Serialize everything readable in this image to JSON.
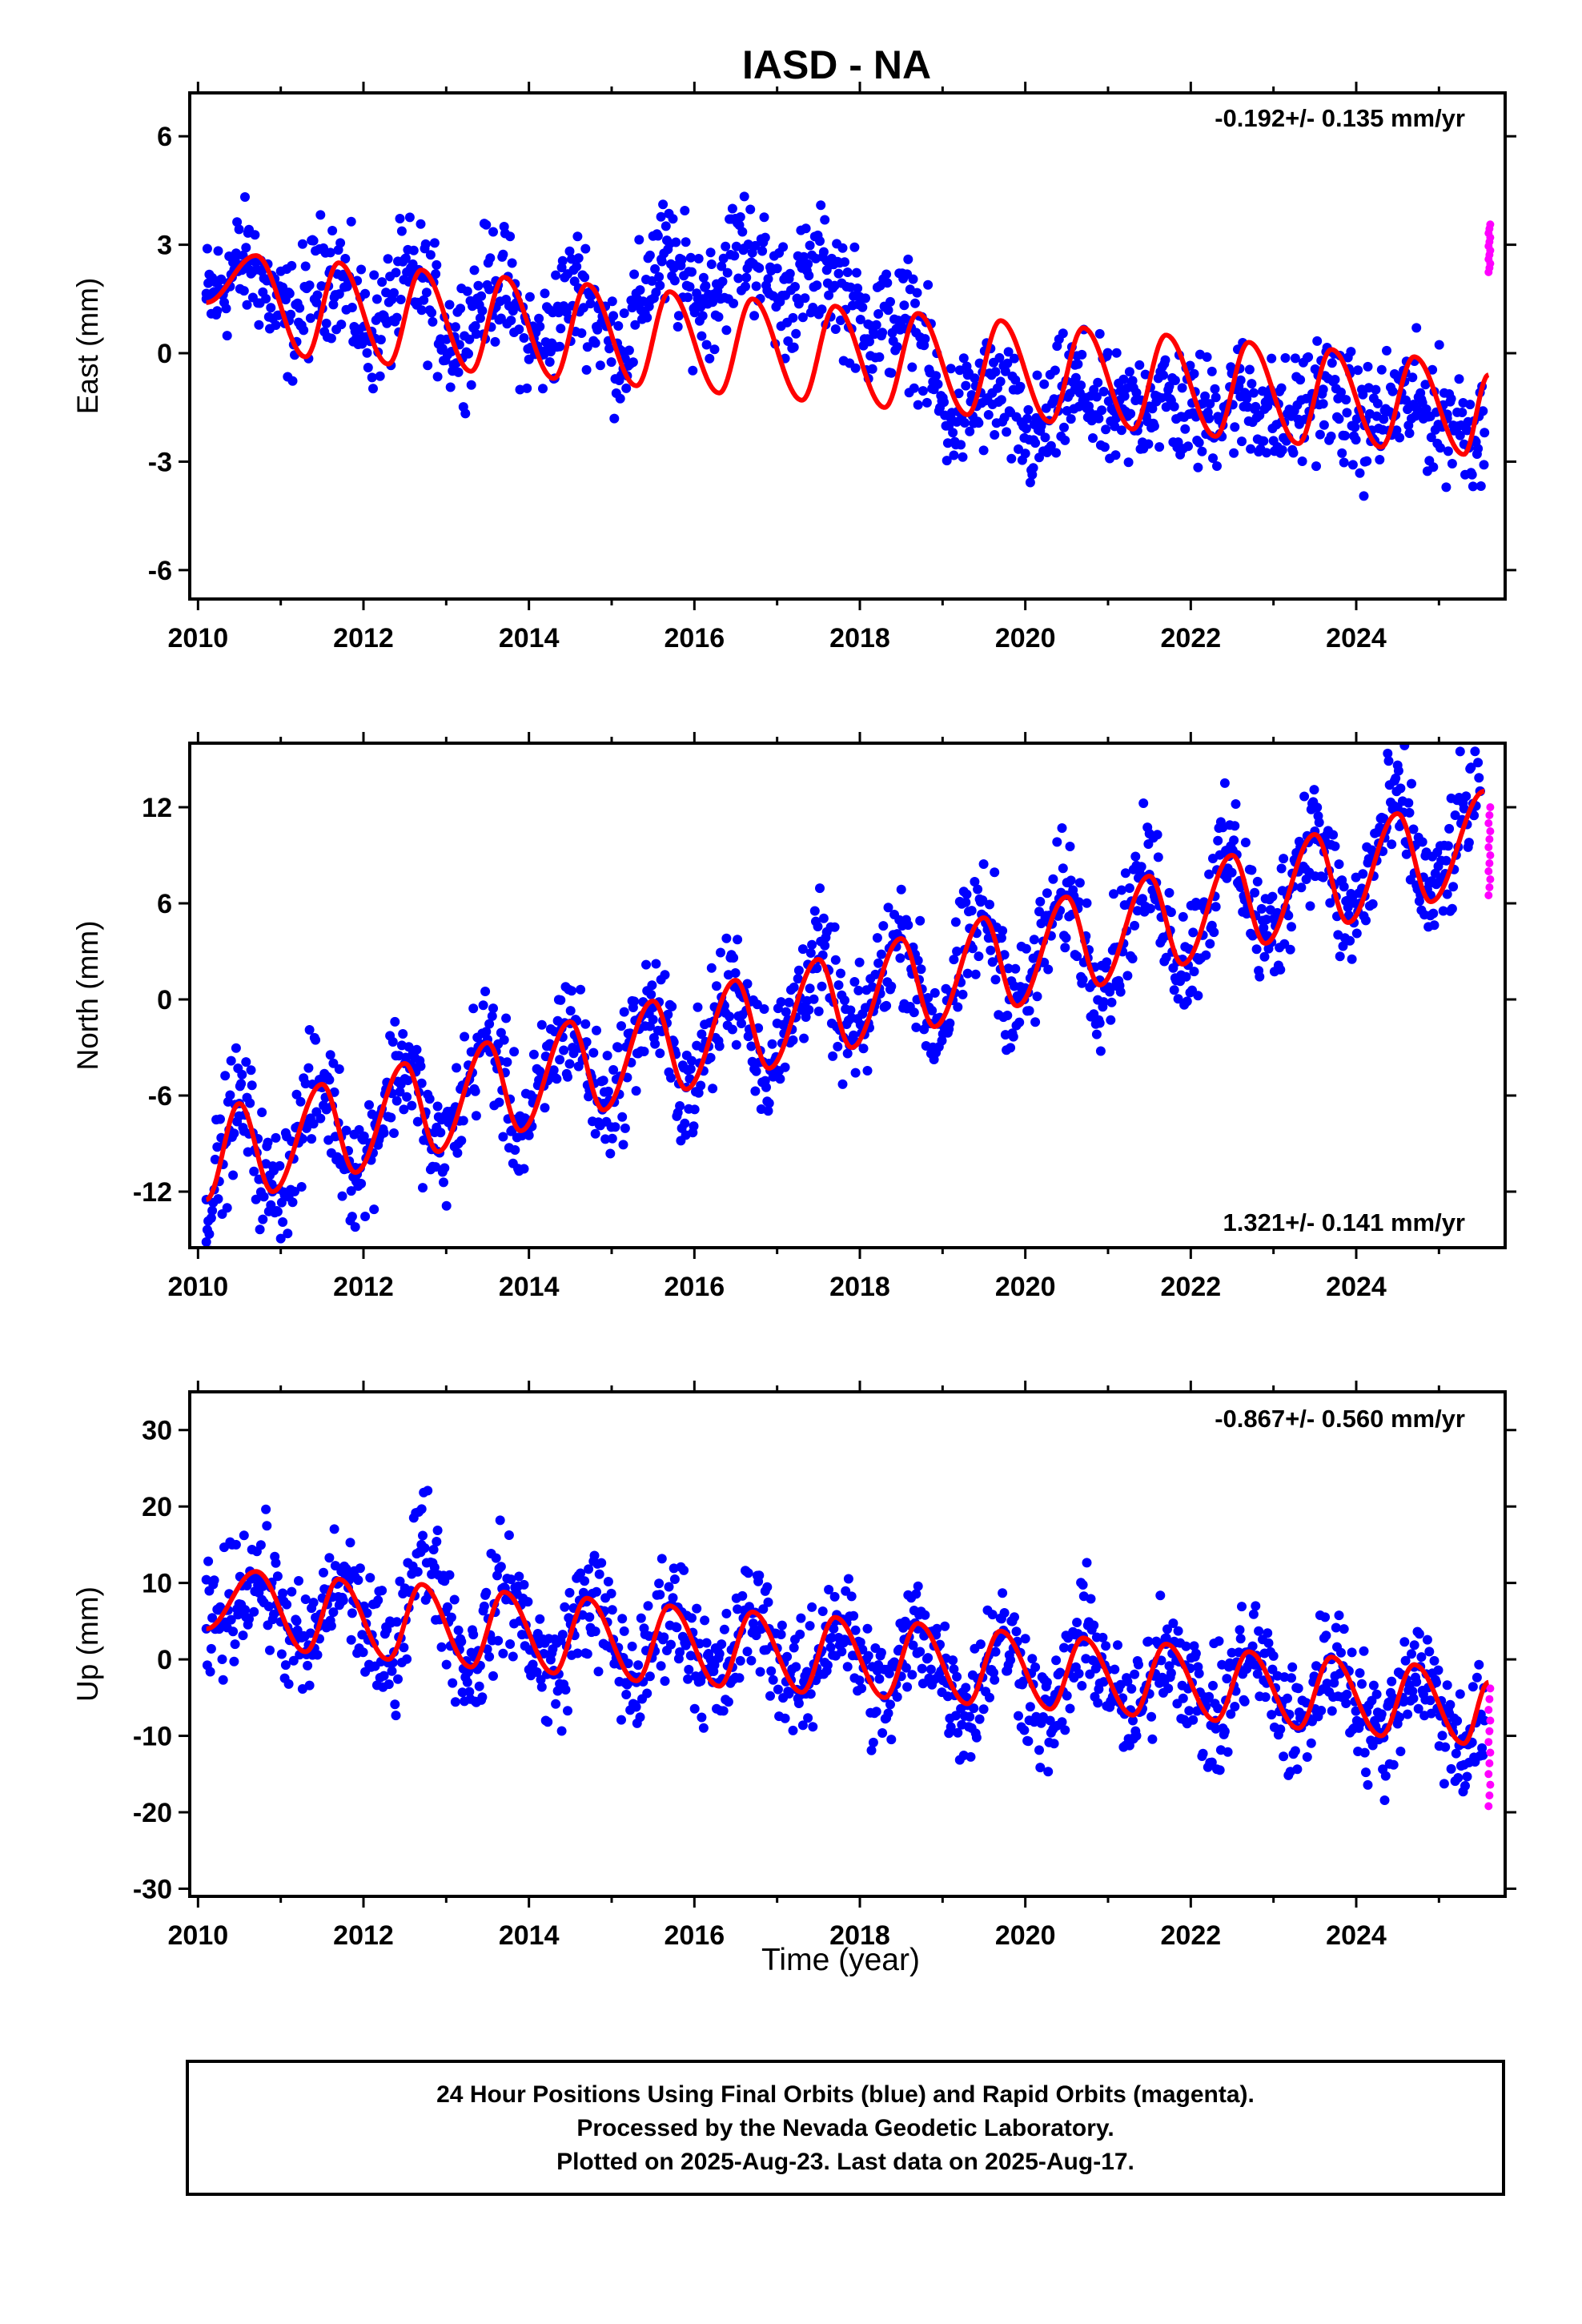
{
  "title": "IASD - NA",
  "colors": {
    "final": "#0000ff",
    "rapid": "#ff00ff",
    "model": "#ff0000",
    "frame": "#000000"
  },
  "footer": {
    "line1": "24 Hour Positions Using Final Orbits (blue) and Rapid Orbits (magenta).",
    "line2": "Processed by the Nevada Geodetic Laboratory.",
    "line3": "Plotted on 2025-Aug-23. Last data on 2025-Aug-17."
  },
  "xlabel": "Time (year)",
  "chart_data": [
    {
      "type": "scatter",
      "ylabel": "East (mm)",
      "rate": "-0.192+/- 0.135 mm/yr",
      "xlim": [
        2009.9,
        2025.8
      ],
      "ylim": [
        -6.8,
        7.2
      ],
      "yticks": [
        -6,
        -3,
        0,
        3,
        6
      ],
      "xticks": [
        2010,
        2012,
        2014,
        2016,
        2018,
        2020,
        2022,
        2024
      ],
      "series": [
        {
          "role": "final",
          "x": [
            2010.1,
            2010.6,
            2011.1,
            2011.6,
            2012.1,
            2012.6,
            2013.1,
            2013.6,
            2014.1,
            2014.6,
            2015.1,
            2015.6,
            2016.1,
            2016.6,
            2017.1,
            2017.6,
            2018.1,
            2018.6,
            2019.1,
            2019.6,
            2020.1,
            2020.6,
            2021.1,
            2021.6,
            2022.1,
            2022.6,
            2023.1,
            2023.6,
            2024.1,
            2024.6,
            2025.1,
            2025.55
          ],
          "y": [
            1.5,
            2.5,
            0.9,
            2.3,
            0.6,
            2.1,
            0.4,
            2.0,
            0.2,
            1.8,
            0.1,
            2.6,
            1.5,
            2.9,
            1.6,
            2.3,
            0.8,
            0.9,
            -1.8,
            -1.1,
            -2.4,
            -1.0,
            -1.8,
            -1.2,
            -1.7,
            -1.2,
            -1.9,
            -1.0,
            -2.0,
            -1.3,
            -1.8,
            -2.2
          ]
        },
        {
          "role": "rapid",
          "x": [
            2025.6,
            2025.62
          ],
          "y": [
            2.6,
            3.2
          ]
        },
        {
          "role": "model",
          "x": [
            2010.1,
            2010.7,
            2011.3,
            2011.7,
            2012.3,
            2012.7,
            2013.3,
            2013.7,
            2014.3,
            2014.7,
            2015.3,
            2015.7,
            2016.3,
            2016.7,
            2017.3,
            2017.7,
            2018.3,
            2018.7,
            2019.3,
            2019.7,
            2020.3,
            2020.7,
            2021.3,
            2021.7,
            2022.3,
            2022.7,
            2023.3,
            2023.7,
            2024.3,
            2024.7,
            2025.3,
            2025.6
          ],
          "y": [
            1.4,
            2.7,
            -0.1,
            2.5,
            -0.3,
            2.3,
            -0.5,
            2.1,
            -0.7,
            1.9,
            -0.9,
            1.7,
            -1.1,
            1.5,
            -1.3,
            1.3,
            -1.5,
            1.1,
            -1.7,
            0.9,
            -1.9,
            0.7,
            -2.1,
            0.5,
            -2.3,
            0.3,
            -2.5,
            0.1,
            -2.6,
            -0.1,
            -2.8,
            -0.6
          ]
        }
      ]
    },
    {
      "type": "scatter",
      "ylabel": "North (mm)",
      "rate": "1.321+/- 0.141 mm/yr",
      "xlim": [
        2009.9,
        2025.8
      ],
      "ylim": [
        -15.5,
        16
      ],
      "yticks": [
        -12,
        -6,
        0,
        6,
        12
      ],
      "xticks": [
        2010,
        2012,
        2014,
        2016,
        2018,
        2020,
        2022,
        2024
      ],
      "series": [
        {
          "role": "final",
          "x": [
            2010.1,
            2010.5,
            2010.9,
            2011.5,
            2011.9,
            2012.5,
            2012.9,
            2013.5,
            2013.9,
            2014.5,
            2014.9,
            2015.5,
            2015.9,
            2016.5,
            2016.9,
            2017.5,
            2017.9,
            2018.5,
            2018.9,
            2019.5,
            2019.9,
            2020.5,
            2020.9,
            2021.5,
            2021.9,
            2022.5,
            2022.9,
            2023.5,
            2023.9,
            2024.5,
            2024.9,
            2025.5
          ],
          "y": [
            -12.5,
            -6.5,
            -12.0,
            -5.5,
            -10.5,
            -4.0,
            -9.5,
            -2.5,
            -8.0,
            -1.5,
            -6.5,
            -0.5,
            -5.5,
            1.0,
            -4.0,
            2.5,
            -2.5,
            3.8,
            -1.5,
            5.2,
            -0.2,
            6.5,
            1.2,
            7.8,
            2.5,
            9.2,
            3.8,
            10.5,
            5.0,
            12.0,
            6.5,
            13.0
          ]
        },
        {
          "role": "rapid",
          "x": [
            2025.6,
            2025.62
          ],
          "y": [
            8.0,
            10.5
          ]
        },
        {
          "role": "model",
          "x": [
            2010.1,
            2010.5,
            2010.9,
            2011.5,
            2011.9,
            2012.5,
            2012.9,
            2013.5,
            2013.9,
            2014.5,
            2014.9,
            2015.5,
            2015.9,
            2016.5,
            2016.9,
            2017.5,
            2017.9,
            2018.5,
            2018.9,
            2019.5,
            2019.9,
            2020.5,
            2020.9,
            2021.5,
            2021.9,
            2022.5,
            2022.9,
            2023.5,
            2023.9,
            2024.5,
            2024.9,
            2025.55
          ],
          "y": [
            -12.5,
            -6.5,
            -12.0,
            -5.3,
            -10.8,
            -4.0,
            -9.5,
            -2.7,
            -8.2,
            -1.4,
            -6.9,
            -0.1,
            -5.6,
            1.2,
            -4.3,
            2.5,
            -3.0,
            3.8,
            -1.7,
            5.1,
            -0.4,
            6.4,
            0.9,
            7.7,
            2.2,
            9.0,
            3.5,
            10.3,
            4.8,
            11.6,
            6.1,
            13.0
          ]
        }
      ]
    },
    {
      "type": "scatter",
      "ylabel": "Up (mm)",
      "rate": "-0.867+/- 0.560 mm/yr",
      "xlim": [
        2009.9,
        2025.8
      ],
      "ylim": [
        -31,
        35
      ],
      "yticks": [
        -30,
        -20,
        -10,
        0,
        10,
        20,
        30
      ],
      "xticks": [
        2010,
        2012,
        2014,
        2016,
        2018,
        2020,
        2022,
        2024
      ],
      "series": [
        {
          "role": "final",
          "x": [
            2010.1,
            2010.7,
            2011.3,
            2011.7,
            2012.3,
            2012.7,
            2013.3,
            2013.7,
            2014.3,
            2014.7,
            2015.3,
            2015.7,
            2016.3,
            2016.7,
            2017.3,
            2017.7,
            2018.3,
            2018.7,
            2019.3,
            2019.7,
            2020.3,
            2020.7,
            2021.3,
            2021.7,
            2022.3,
            2022.7,
            2023.3,
            2023.7,
            2024.3,
            2024.7,
            2025.3,
            2025.55
          ],
          "y": [
            4,
            11,
            1,
            10,
            0,
            15,
            -1,
            9,
            -2,
            8,
            -3,
            7,
            -3,
            6,
            -4,
            5,
            -5,
            4,
            -6,
            3,
            -8,
            3,
            -8,
            2,
            -8,
            1,
            -9,
            0,
            -10,
            -1,
            -11,
            -8
          ]
        },
        {
          "role": "rapid",
          "x": [
            2025.6,
            2025.62
          ],
          "y": [
            -8,
            -15
          ]
        },
        {
          "role": "model",
          "x": [
            2010.1,
            2010.7,
            2011.3,
            2011.7,
            2012.3,
            2012.7,
            2013.3,
            2013.7,
            2014.3,
            2014.7,
            2015.3,
            2015.7,
            2016.3,
            2016.7,
            2017.3,
            2017.7,
            2018.3,
            2018.7,
            2019.3,
            2019.7,
            2020.3,
            2020.7,
            2021.3,
            2021.7,
            2022.3,
            2022.7,
            2023.3,
            2023.7,
            2024.3,
            2024.7,
            2025.3,
            2025.6
          ],
          "y": [
            4,
            11.5,
            1,
            10.5,
            0,
            9.8,
            -1,
            8.8,
            -1.8,
            8,
            -2.8,
            7,
            -3.5,
            6.2,
            -4.3,
            5.5,
            -5,
            4.7,
            -5.8,
            3.7,
            -6.5,
            2.8,
            -7.3,
            2,
            -8,
            1,
            -9,
            0.3,
            -10,
            -0.7,
            -11,
            -3
          ]
        }
      ]
    }
  ]
}
